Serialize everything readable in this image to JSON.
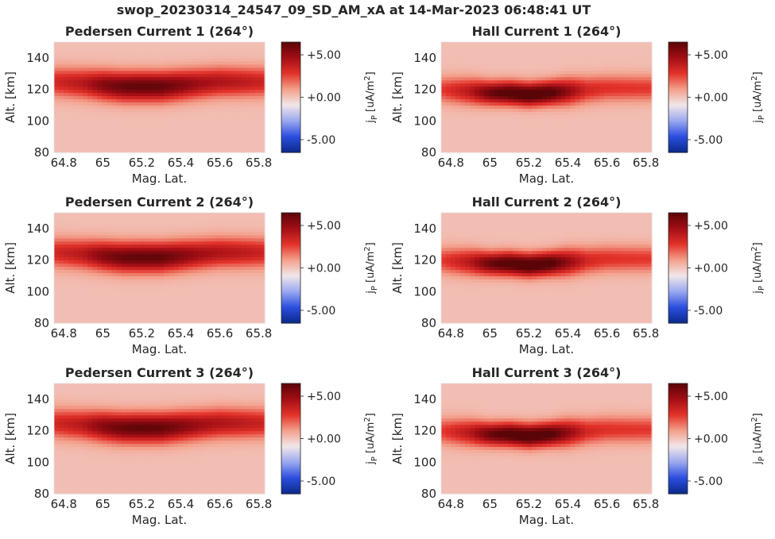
{
  "figure": {
    "suptitle": "swop_20230314_24547_09_SD_AM_xA at 14-Mar-2023 06:48:41 UT"
  },
  "colors": {
    "cmap": [
      "#0b2a8a",
      "#2c4ee0",
      "#9aa8ef",
      "#f1e6ea",
      "#f3a08b",
      "#e3322a",
      "#a30e15",
      "#5a0508"
    ],
    "background": "#f1e6ea",
    "text": "#262626"
  },
  "chart_data": [
    {
      "type": "heatmap",
      "title": "Pedersen Current 1 (264°)",
      "xlabel": "Mag. Lat.",
      "ylabel": "Alt. [km]",
      "xlim": [
        64.75,
        65.83
      ],
      "ylim": [
        80,
        150
      ],
      "xticks": [
        "64.8",
        "65",
        "65.2",
        "65.4",
        "65.6",
        "65.8"
      ],
      "yticks": [
        "80",
        "100",
        "120",
        "140"
      ],
      "colorbar": {
        "label_main": "j",
        "label_sub": "P",
        "label_units": " [uA/m",
        "label_sup": "2",
        "label_end": "]",
        "clim": [
          -6.5,
          6.5
        ],
        "ticks": [
          "+5.00",
          "+0.00",
          "-5.00"
        ]
      },
      "band": {
        "lat": [
          64.75,
          64.9,
          65.0,
          65.1,
          65.2,
          65.3,
          65.4,
          65.5,
          65.6,
          65.7,
          65.83
        ],
        "center_alt": [
          125,
          124,
          123,
          122,
          122,
          122,
          123,
          124,
          125,
          125,
          125
        ],
        "peak": [
          3.2,
          4.0,
          5.3,
          6.0,
          6.2,
          6.1,
          5.4,
          4.6,
          4.2,
          3.9,
          3.4
        ],
        "thickness_km": [
          9,
          9,
          9,
          9,
          9,
          9,
          9,
          9,
          9,
          9,
          9
        ]
      }
    },
    {
      "type": "heatmap",
      "title": "Hall Current 1 (264°)",
      "xlabel": "Mag. Lat.",
      "ylabel": "Alt. [km]",
      "xlim": [
        64.75,
        65.83
      ],
      "ylim": [
        80,
        150
      ],
      "xticks": [
        "64.8",
        "65",
        "65.2",
        "65.4",
        "65.6",
        "65.8"
      ],
      "yticks": [
        "80",
        "100",
        "120",
        "140"
      ],
      "colorbar": {
        "label_main": "j",
        "label_sub": "P",
        "label_units": " [uA/m",
        "label_sup": "2",
        "label_end": "]",
        "clim": [
          -6.5,
          6.5
        ],
        "ticks": [
          "+5.00",
          "+0.00",
          "-5.00"
        ]
      },
      "band": {
        "lat": [
          64.75,
          64.9,
          65.0,
          65.1,
          65.2,
          65.3,
          65.4,
          65.5,
          65.6,
          65.7,
          65.83
        ],
        "center_alt": [
          120,
          119,
          118,
          118,
          117,
          118,
          119,
          120,
          121,
          121,
          121
        ],
        "peak": [
          2.5,
          4.0,
          6.0,
          7.0,
          7.3,
          7.0,
          5.0,
          3.2,
          2.8,
          2.7,
          2.6
        ],
        "thickness_km": [
          8,
          8,
          7,
          7,
          7,
          7,
          8,
          8,
          8,
          8,
          8
        ]
      }
    },
    {
      "type": "heatmap",
      "title": "Pedersen Current 2 (264°)",
      "xlabel": "Mag. Lat.",
      "ylabel": "Alt. [km]",
      "xlim": [
        64.75,
        65.83
      ],
      "ylim": [
        80,
        150
      ],
      "xticks": [
        "64.8",
        "65",
        "65.2",
        "65.4",
        "65.6",
        "65.8"
      ],
      "yticks": [
        "80",
        "100",
        "120",
        "140"
      ],
      "colorbar": {
        "label_main": "j",
        "label_sub": "P",
        "label_units": " [uA/m",
        "label_sup": "2",
        "label_end": "]",
        "clim": [
          -6.5,
          6.5
        ],
        "ticks": [
          "+5.00",
          "+0.00",
          "-5.00"
        ]
      },
      "band": {
        "lat": [
          64.75,
          64.9,
          65.0,
          65.1,
          65.2,
          65.3,
          65.4,
          65.5,
          65.6,
          65.7,
          65.83
        ],
        "center_alt": [
          125,
          124,
          123,
          122,
          122,
          122,
          123,
          124,
          125,
          125,
          125
        ],
        "peak": [
          3.2,
          4.0,
          5.3,
          6.0,
          6.2,
          6.1,
          5.4,
          4.6,
          4.2,
          3.9,
          3.4
        ],
        "thickness_km": [
          9,
          9,
          9,
          9,
          9,
          9,
          9,
          9,
          9,
          9,
          9
        ]
      }
    },
    {
      "type": "heatmap",
      "title": "Hall Current 2 (264°)",
      "xlabel": "Mag. Lat.",
      "ylabel": "Alt. [km]",
      "xlim": [
        64.75,
        65.83
      ],
      "ylim": [
        80,
        150
      ],
      "xticks": [
        "64.8",
        "65",
        "65.2",
        "65.4",
        "65.6",
        "65.8"
      ],
      "yticks": [
        "80",
        "100",
        "120",
        "140"
      ],
      "colorbar": {
        "label_main": "j",
        "label_sub": "P",
        "label_units": " [uA/m",
        "label_sup": "2",
        "label_end": "]",
        "clim": [
          -6.5,
          6.5
        ],
        "ticks": [
          "+5.00",
          "+0.00",
          "-5.00"
        ]
      },
      "band": {
        "lat": [
          64.75,
          64.9,
          65.0,
          65.1,
          65.2,
          65.3,
          65.4,
          65.5,
          65.6,
          65.7,
          65.83
        ],
        "center_alt": [
          120,
          119,
          118,
          118,
          117,
          118,
          119,
          120,
          121,
          121,
          121
        ],
        "peak": [
          2.5,
          4.0,
          6.0,
          7.0,
          7.3,
          7.0,
          5.0,
          3.2,
          2.8,
          2.7,
          2.6
        ],
        "thickness_km": [
          8,
          8,
          7,
          7,
          7,
          7,
          8,
          8,
          8,
          8,
          8
        ]
      }
    },
    {
      "type": "heatmap",
      "title": "Pedersen Current 3 (264°)",
      "xlabel": "Mag. Lat.",
      "ylabel": "Alt. [km]",
      "xlim": [
        64.75,
        65.83
      ],
      "ylim": [
        80,
        150
      ],
      "xticks": [
        "64.8",
        "65",
        "65.2",
        "65.4",
        "65.6",
        "65.8"
      ],
      "yticks": [
        "80",
        "100",
        "120",
        "140"
      ],
      "colorbar": {
        "label_main": "j",
        "label_sub": "P",
        "label_units": " [uA/m",
        "label_sup": "2",
        "label_end": "]",
        "clim": [
          -6.5,
          6.5
        ],
        "ticks": [
          "+5.00",
          "+0.00",
          "-5.00"
        ]
      },
      "band": {
        "lat": [
          64.75,
          64.9,
          65.0,
          65.1,
          65.2,
          65.3,
          65.4,
          65.5,
          65.6,
          65.7,
          65.83
        ],
        "center_alt": [
          125,
          124,
          123,
          122,
          122,
          122,
          123,
          124,
          125,
          125,
          125
        ],
        "peak": [
          3.2,
          4.0,
          5.3,
          6.0,
          6.2,
          6.1,
          5.4,
          4.6,
          4.2,
          3.9,
          3.4
        ],
        "thickness_km": [
          9,
          9,
          9,
          9,
          9,
          9,
          9,
          9,
          9,
          9,
          9
        ]
      }
    },
    {
      "type": "heatmap",
      "title": "Hall Current 3 (264°)",
      "xlabel": "Mag. Lat.",
      "ylabel": "Alt. [km]",
      "xlim": [
        64.75,
        65.83
      ],
      "ylim": [
        80,
        150
      ],
      "xticks": [
        "64.8",
        "65",
        "65.2",
        "65.4",
        "65.6",
        "65.8"
      ],
      "yticks": [
        "80",
        "100",
        "120",
        "140"
      ],
      "colorbar": {
        "label_main": "j",
        "label_sub": "P",
        "label_units": " [uA/m",
        "label_sup": "2",
        "label_end": "]",
        "clim": [
          -6.5,
          6.5
        ],
        "ticks": [
          "+5.00",
          "+0.00",
          "-5.00"
        ]
      },
      "band": {
        "lat": [
          64.75,
          64.9,
          65.0,
          65.1,
          65.2,
          65.3,
          65.4,
          65.5,
          65.6,
          65.7,
          65.83
        ],
        "center_alt": [
          120,
          119,
          118,
          118,
          117,
          118,
          119,
          120,
          121,
          121,
          121
        ],
        "peak": [
          2.5,
          4.0,
          6.0,
          7.0,
          7.3,
          7.0,
          5.0,
          3.2,
          2.8,
          2.7,
          2.6
        ],
        "thickness_km": [
          8,
          8,
          7,
          7,
          7,
          7,
          8,
          8,
          8,
          8,
          8
        ]
      }
    }
  ]
}
